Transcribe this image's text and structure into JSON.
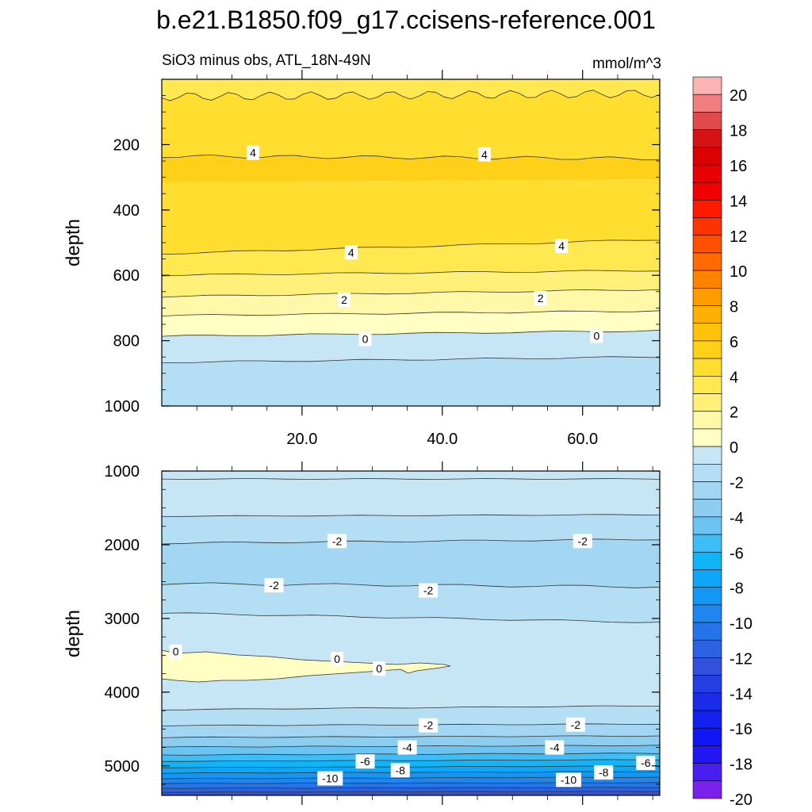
{
  "title": "b.e21.B1850.f09_g17.ccisens-reference.001",
  "chart_data": {
    "type": "contour",
    "title": "b.e21.B1850.f09_g17.ccisens-reference.001",
    "subtitle_left": "SiO3 minus obs, ATL_18N-49N",
    "subtitle_right": "mmol/m^3",
    "xlabel": "",
    "ylabel": "depth",
    "x_range": [
      0,
      71
    ],
    "x_tick_labels": [
      "20.0",
      "40.0",
      "60.0"
    ],
    "x_tick_values": [
      20,
      40,
      60
    ],
    "panels": [
      {
        "name": "upper",
        "ylim": [
          0,
          1000
        ],
        "y_tick_labels": [
          "200",
          "400",
          "600",
          "800",
          "1000"
        ],
        "y_tick_values": [
          200,
          400,
          600,
          800,
          1000
        ],
        "contour_labels": [
          {
            "text": "4",
            "x": 13,
            "y": 225
          },
          {
            "text": "4",
            "x": 46,
            "y": 230
          },
          {
            "text": "4",
            "x": 27,
            "y": 530
          },
          {
            "text": "4",
            "x": 57,
            "y": 510
          },
          {
            "text": "2",
            "x": 26,
            "y": 675
          },
          {
            "text": "2",
            "x": 54,
            "y": 670
          },
          {
            "text": "0",
            "x": 29,
            "y": 795
          },
          {
            "text": "0",
            "x": 62,
            "y": 785
          }
        ]
      },
      {
        "name": "lower",
        "ylim": [
          1000,
          5400
        ],
        "y_tick_labels": [
          "1000",
          "2000",
          "3000",
          "4000",
          "5000"
        ],
        "y_tick_values": [
          1000,
          2000,
          3000,
          4000,
          5000
        ],
        "contour_labels": [
          {
            "text": "-2",
            "x": 25,
            "y": 1950
          },
          {
            "text": "-2",
            "x": 60,
            "y": 1950
          },
          {
            "text": "-2",
            "x": 16,
            "y": 2550
          },
          {
            "text": "-2",
            "x": 38,
            "y": 2620
          },
          {
            "text": "0",
            "x": 2,
            "y": 3450
          },
          {
            "text": "0",
            "x": 25,
            "y": 3550
          },
          {
            "text": "0",
            "x": 31,
            "y": 3680
          },
          {
            "text": "-2",
            "x": 38,
            "y": 4450
          },
          {
            "text": "-2",
            "x": 59,
            "y": 4440
          },
          {
            "text": "-4",
            "x": 35,
            "y": 4750
          },
          {
            "text": "-4",
            "x": 56,
            "y": 4750
          },
          {
            "text": "-6",
            "x": 29,
            "y": 4940
          },
          {
            "text": "-8",
            "x": 34,
            "y": 5060
          },
          {
            "text": "-10",
            "x": 24,
            "y": 5170
          },
          {
            "text": "-10",
            "x": 58,
            "y": 5190
          },
          {
            "text": "-8",
            "x": 63,
            "y": 5090
          },
          {
            "text": "-6",
            "x": 69,
            "y": 4960
          }
        ]
      }
    ],
    "colorbar": {
      "tick_labels": [
        "20",
        "18",
        "16",
        "14",
        "12",
        "10",
        "8",
        "6",
        "4",
        "2",
        "0",
        "-2",
        "-4",
        "-6",
        "-8",
        "-10",
        "-12",
        "-14",
        "-16",
        "-18",
        "-20"
      ],
      "colors": [
        "#fbb4b4",
        "#f07e7e",
        "#e14a4a",
        "#d41414",
        "#dc0000",
        "#e80000",
        "#f20000",
        "#ff1a00",
        "#ff3300",
        "#ff5000",
        "#ff6a00",
        "#ff8300",
        "#ff9c00",
        "#ffb000",
        "#ffc20a",
        "#ffd018",
        "#ffde30",
        "#ffe850",
        "#fff07a",
        "#fff8a8",
        "#ffffc4",
        "#c6e6f6",
        "#b4def4",
        "#a2d6f2",
        "#8ccdf0",
        "#6cc4f2",
        "#3ebef6",
        "#12b4f8",
        "#0ea6f8",
        "#1496f4",
        "#1e86ee",
        "#2574e8",
        "#2c62e2",
        "#3250dc",
        "#243ee2",
        "#1a2ce8",
        "#1222ee",
        "#1016f4",
        "#2416f2",
        "#4a1ef0",
        "#7a22ec"
      ]
    }
  }
}
